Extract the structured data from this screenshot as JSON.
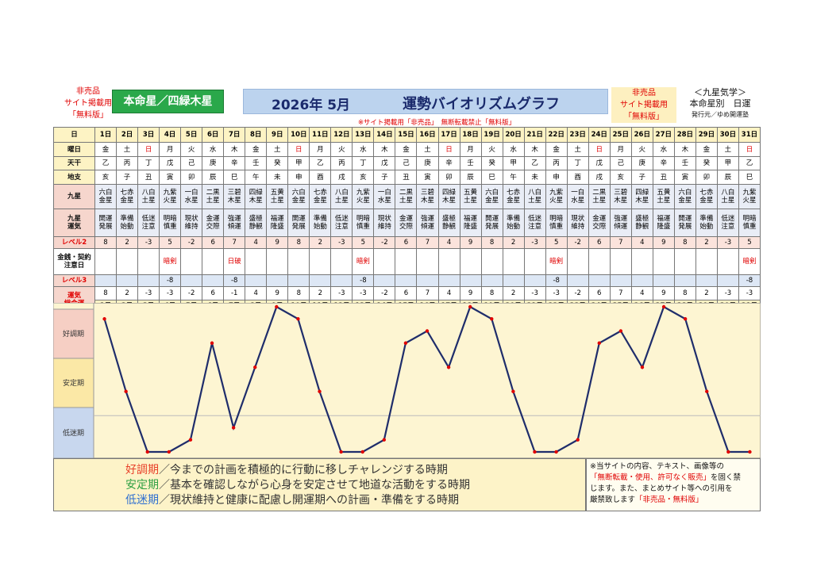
{
  "header": {
    "notice_left": [
      "非売品",
      "サイト掲載用",
      "「無料版」"
    ],
    "honmei": "本命星／四緑木星",
    "title_date": "2026年 5月",
    "title": "運勢バイオリズムグラフ",
    "notice_right": [
      "非売品",
      "サイト掲載用",
      "「無料版」"
    ],
    "kyusei": "＜九星気学＞",
    "subtitle": "本命星別　日運",
    "publisher": "発行元／ゆめ開運塾",
    "banner": "※サイト掲載用「非売品」　無断転載禁止「無料版」"
  },
  "table": {
    "row_labels": [
      [
        "日"
      ],
      [
        "曜日"
      ],
      [
        "天干"
      ],
      [
        "地支"
      ],
      [
        "九星"
      ],
      [
        "九星",
        "運気"
      ],
      [
        "レベル2"
      ],
      [
        "金銭・契約",
        "注意日"
      ],
      [
        "レベル3"
      ],
      [
        "運気",
        "総合運"
      ]
    ],
    "sunday": "日",
    "sunday_color": "#e00000",
    "days": [
      "1日",
      "2日",
      "3日",
      "4日",
      "5日",
      "6日",
      "7日",
      "8日",
      "9日",
      "10日",
      "11日",
      "12日",
      "13日",
      "14日",
      "15日",
      "16日",
      "17日",
      "18日",
      "19日",
      "20日",
      "21日",
      "22日",
      "23日",
      "24日",
      "25日",
      "26日",
      "27日",
      "28日",
      "29日",
      "30日",
      "31日"
    ],
    "weekdays": [
      "金",
      "土",
      "日",
      "月",
      "火",
      "水",
      "木",
      "金",
      "土",
      "日",
      "月",
      "火",
      "水",
      "木",
      "金",
      "土",
      "日",
      "月",
      "火",
      "水",
      "木",
      "金",
      "土",
      "日",
      "月",
      "火",
      "水",
      "木",
      "金",
      "土",
      "日"
    ],
    "stems": [
      "乙",
      "丙",
      "丁",
      "戊",
      "己",
      "庚",
      "辛",
      "壬",
      "癸",
      "甲",
      "乙",
      "丙",
      "丁",
      "戊",
      "己",
      "庚",
      "辛",
      "壬",
      "癸",
      "甲",
      "乙",
      "丙",
      "丁",
      "戊",
      "己",
      "庚",
      "辛",
      "壬",
      "癸",
      "甲",
      "乙"
    ],
    "branches": [
      "亥",
      "子",
      "丑",
      "寅",
      "卯",
      "辰",
      "巳",
      "午",
      "未",
      "申",
      "酉",
      "戌",
      "亥",
      "子",
      "丑",
      "寅",
      "卯",
      "辰",
      "巳",
      "午",
      "未",
      "申",
      "酉",
      "戌",
      "亥",
      "子",
      "丑",
      "寅",
      "卯",
      "辰",
      "巳"
    ],
    "stars": [
      "六白金星",
      "七赤金星",
      "八白土星",
      "九紫火星",
      "一白水星",
      "二黒土星",
      "三碧木星",
      "四緑木星",
      "五黄土星",
      "六白金星",
      "七赤金星",
      "八白土星",
      "九紫火星",
      "一白水星",
      "二黒土星",
      "三碧木星",
      "四緑木星",
      "五黄土星",
      "六白金星",
      "七赤金星",
      "八白土星",
      "九紫火星",
      "一白水星",
      "二黒土星",
      "三碧木星",
      "四緑木星",
      "五黄土星",
      "六白金星",
      "七赤金星",
      "八白土星",
      "九紫火星"
    ],
    "fortune": [
      "開運発展",
      "準備始動",
      "低迷注意",
      "明暗慎重",
      "現状維持",
      "金運交際",
      "強運傾運",
      "盛極静観",
      "福運隆盛",
      "開運発展",
      "準備始動",
      "低迷注意",
      "明暗慎重",
      "現状維持",
      "金運交際",
      "強運傾運",
      "盛極静観",
      "福運隆盛",
      "開運発展",
      "準備始動",
      "低迷注意",
      "明暗慎重",
      "現状維持",
      "金運交際",
      "強運傾運",
      "盛極静観",
      "福運隆盛",
      "開運発展",
      "準備始動",
      "低迷注意",
      "明暗慎重"
    ],
    "level2": [
      8,
      2,
      -3,
      5,
      -2,
      6,
      7,
      4,
      9,
      8,
      2,
      -3,
      5,
      -2,
      6,
      7,
      4,
      9,
      8,
      2,
      -3,
      5,
      -2,
      6,
      7,
      4,
      9,
      8,
      2,
      -3,
      5
    ],
    "money_notes": [
      null,
      null,
      null,
      "暗剣",
      null,
      null,
      "日破",
      null,
      null,
      null,
      null,
      null,
      "暗剣",
      null,
      null,
      null,
      null,
      null,
      null,
      null,
      null,
      "暗剣",
      null,
      null,
      null,
      null,
      null,
      null,
      null,
      null,
      "暗剣"
    ],
    "level3": [
      null,
      null,
      null,
      -8,
      null,
      null,
      -8,
      null,
      null,
      null,
      null,
      null,
      -8,
      null,
      null,
      null,
      null,
      null,
      null,
      null,
      null,
      -8,
      null,
      null,
      null,
      null,
      null,
      null,
      null,
      null,
      -8
    ]
  },
  "chart_data": {
    "type": "line",
    "values": [
      8,
      2,
      -3,
      -3,
      -2,
      6,
      -1,
      4,
      9,
      8,
      2,
      -3,
      -3,
      -2,
      6,
      7,
      4,
      9,
      8,
      2,
      -3,
      -3,
      -2,
      6,
      7,
      4,
      9,
      8,
      2,
      -3,
      -3
    ],
    "ylim": [
      -3,
      9
    ],
    "color": "#1f2d6b",
    "marker_color": "#e00000",
    "bands": [
      {
        "name": "好調期",
        "color": "#f6cfc4"
      },
      {
        "name": "安定期",
        "color": "#fbe8a6"
      },
      {
        "name": "低迷期",
        "color": "#c8d7ee"
      }
    ]
  },
  "legend": [
    {
      "term": "好調期",
      "color": "#e8412a",
      "text": "／今までの計画を積極的に行動に移しチャレンジする時期"
    },
    {
      "term": "安定期",
      "color": "#2ea043",
      "text": "／基本を確認しながら心身を安定させて地道な活動をする時期"
    },
    {
      "term": "低迷期",
      "color": "#2f6fd0",
      "text": "／現状維持と健康に配慮し開運期への計画・準備をする時期"
    }
  ],
  "note": [
    [
      {
        "text": "※当サイトの内容、テキスト、画像等の",
        "color": "#111111"
      }
    ],
    [
      {
        "text": "「無断転載・使用、許可なく販売」",
        "color": "#e00000"
      },
      {
        "text": "を固く禁",
        "color": "#111111"
      }
    ],
    [
      {
        "text": "じます。また、まとめサイト等への引用を",
        "color": "#111111"
      }
    ],
    [
      {
        "text": "厳禁致します",
        "color": "#111111"
      },
      {
        "text": "「非売品・無料版」",
        "color": "#e00000"
      }
    ]
  ]
}
